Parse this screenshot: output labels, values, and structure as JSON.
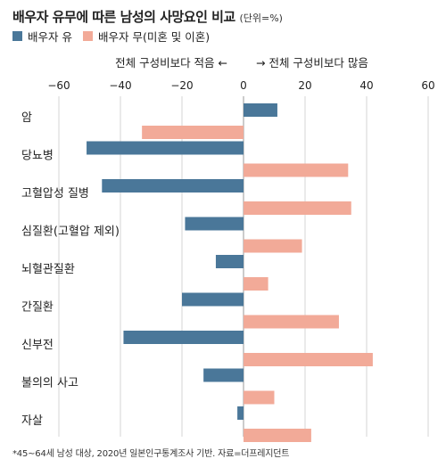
{
  "chart_data": {
    "type": "bar",
    "orientation": "horizontal",
    "title": "배우자 유무에 따른 남성의 사망요인 비교",
    "unit_note": "(단위=%)",
    "direction_left": "전체 구성비보다 적음 ←",
    "direction_right": "→ 전체 구성비보다 많음",
    "xlim": [
      -60,
      60
    ],
    "xticks": [
      "−60",
      "−40",
      "−20",
      "0",
      "20",
      "40",
      "60"
    ],
    "categories": [
      "암",
      "당뇨병",
      "고혈압성 질병",
      "심질환(고혈압 제외)",
      "뇌혈관질환",
      "간질환",
      "신부전",
      "불의의 사고",
      "자살"
    ],
    "series": [
      {
        "name": "배우자 유",
        "color": "#4a7799",
        "values": [
          11,
          -51,
          -46,
          -19,
          -9,
          -20,
          -39,
          -13,
          -2
        ]
      },
      {
        "name": "배우자 무(미혼 및 이혼)",
        "color": "#f2aa98",
        "values": [
          -33,
          34,
          35,
          19,
          8,
          31,
          42,
          10,
          22
        ]
      }
    ],
    "grid": true,
    "legend_position": "top-left",
    "footnote": "*45~64세 남성 대상, 2020년 일본인구통계조사 기반. 자료=더프레지던트"
  }
}
